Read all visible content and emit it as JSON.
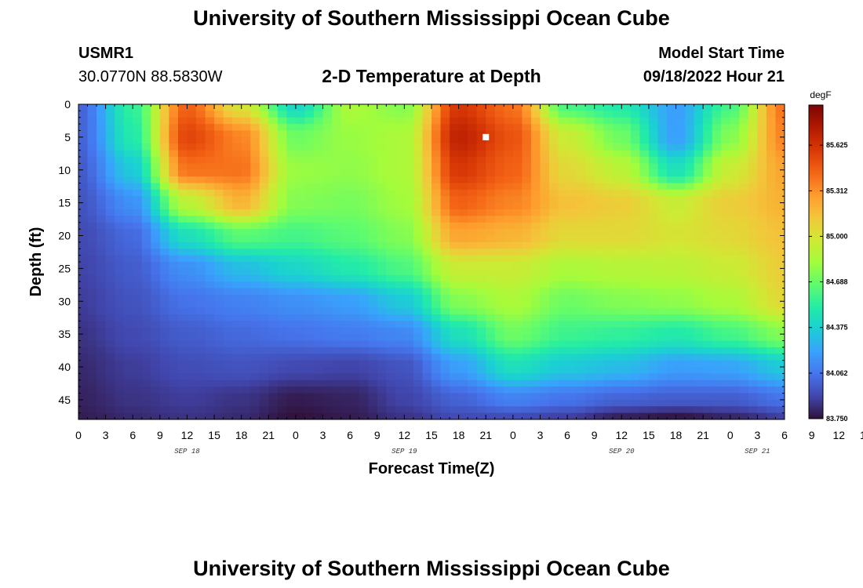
{
  "page": {
    "title_top": "University of Southern Mississippi Ocean Cube",
    "title_bottom": "University of Southern Mississippi Ocean Cube",
    "station_id": "USMR1",
    "station_coords": "30.0770N  88.5830W",
    "chart_title": "2-D Temperature at Depth",
    "model_start_label": "Model Start Time",
    "model_start_value": "09/18/2022 Hour 21"
  },
  "colors": {
    "colormap": [
      "#30123b",
      "#4145ab",
      "#4675ed",
      "#39a2fc",
      "#1bcfd4",
      "#24eca6",
      "#61fc6c",
      "#a4fc3b",
      "#d1e834",
      "#f3c63a",
      "#fe9b2d",
      "#f36315",
      "#d93806",
      "#b11901",
      "#7a0402"
    ],
    "marker": "#ffffff"
  },
  "chart_data": {
    "type": "heatmap",
    "title": "2-D Temperature at Depth",
    "xlabel": "Forecast Time(Z)",
    "ylabel": "Depth (ft)",
    "x_tick_labels": [
      "0",
      "3",
      "6",
      "9",
      "12",
      "15",
      "18",
      "21",
      "0",
      "3",
      "6",
      "9",
      "12",
      "15",
      "18",
      "21",
      "0",
      "3",
      "6",
      "9",
      "12",
      "15",
      "18",
      "21",
      "0",
      "3",
      "6",
      "9",
      "12",
      "15",
      "18",
      "21",
      "0",
      "3",
      "6"
    ],
    "x_range_hours": [
      0,
      78
    ],
    "x_date_labels": [
      {
        "label": "SEP 18",
        "hour": 12
      },
      {
        "label": "SEP 19",
        "hour": 36
      },
      {
        "label": "SEP 20",
        "hour": 60
      },
      {
        "label": "SEP 21",
        "hour": 75
      }
    ],
    "y_ticks": [
      0,
      5,
      10,
      15,
      20,
      25,
      30,
      35,
      40,
      45
    ],
    "y_tick_labels": [
      "0",
      "5",
      "10",
      "15",
      "20",
      "25",
      "30",
      "35",
      "40",
      "45"
    ],
    "y_range_ft": [
      0,
      48
    ],
    "colorbar": {
      "unit": "degF",
      "min": 83.75,
      "max": 85.9,
      "tick_values": [
        83.75,
        84.062,
        84.375,
        84.688,
        85.0,
        85.312,
        85.625
      ],
      "tick_labels": [
        "83.750",
        "84.062",
        "84.375",
        "84.688",
        "85.000",
        "85.312",
        "85.625"
      ]
    },
    "marker": {
      "hour": 45,
      "depth_ft": 5
    },
    "grid_hours": [
      0,
      6,
      12,
      18,
      24,
      30,
      36,
      42,
      48,
      54,
      60,
      66,
      72,
      78
    ],
    "grid_depths_ft": [
      0,
      5,
      10,
      15,
      20,
      25,
      30,
      35,
      40,
      45,
      48
    ],
    "values_degF": [
      [
        84.0,
        84.55,
        85.45,
        85.0,
        84.4,
        84.85,
        84.75,
        85.6,
        85.4,
        84.6,
        84.5,
        84.2,
        84.6,
        85.4
      ],
      [
        84.0,
        84.5,
        85.55,
        85.35,
        84.7,
        84.8,
        84.85,
        85.7,
        85.5,
        84.95,
        84.7,
        84.2,
        84.75,
        85.35
      ],
      [
        83.97,
        84.35,
        85.4,
        85.4,
        84.8,
        84.78,
        84.85,
        85.6,
        85.45,
        85.05,
        84.9,
        84.45,
        84.95,
        85.25
      ],
      [
        83.95,
        84.15,
        84.9,
        85.2,
        84.75,
        84.72,
        84.82,
        85.45,
        85.35,
        85.15,
        85.1,
        84.95,
        85.1,
        85.2
      ],
      [
        83.92,
        84.02,
        84.45,
        84.65,
        84.6,
        84.65,
        84.75,
        85.25,
        85.2,
        85.05,
        85.05,
        85.0,
        85.05,
        85.15
      ],
      [
        83.9,
        83.98,
        84.15,
        84.3,
        84.4,
        84.5,
        84.62,
        84.95,
        84.95,
        84.85,
        84.88,
        84.9,
        84.95,
        85.1
      ],
      [
        83.88,
        83.95,
        84.05,
        84.1,
        84.15,
        84.2,
        84.35,
        84.75,
        84.85,
        84.7,
        84.75,
        84.78,
        84.85,
        85.05
      ],
      [
        83.85,
        83.92,
        83.98,
        84.02,
        84.05,
        84.08,
        84.12,
        84.45,
        84.7,
        84.58,
        84.55,
        84.5,
        84.6,
        84.75
      ],
      [
        83.82,
        83.88,
        83.93,
        83.95,
        83.92,
        83.9,
        83.95,
        84.2,
        84.45,
        84.35,
        84.3,
        84.2,
        84.22,
        84.35
      ],
      [
        83.8,
        83.85,
        83.88,
        83.85,
        83.78,
        83.8,
        83.9,
        84.0,
        84.1,
        84.05,
        84.0,
        83.98,
        83.98,
        84.05
      ],
      [
        83.78,
        83.82,
        83.85,
        83.82,
        83.75,
        83.78,
        83.85,
        83.92,
        83.92,
        83.88,
        83.78,
        83.75,
        83.8,
        83.88
      ]
    ]
  }
}
